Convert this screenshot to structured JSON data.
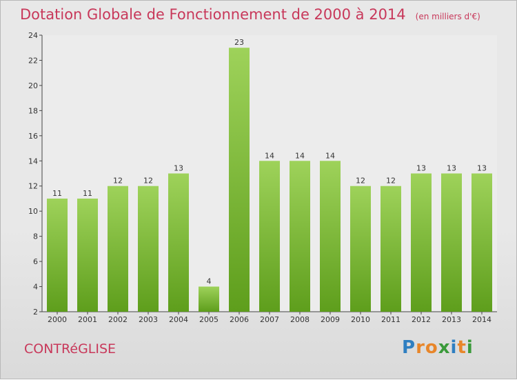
{
  "chart_data": {
    "type": "bar",
    "title": "Dotation Globale de Fonctionnement de 2000 à 2014",
    "subtitle": "(en milliers d'€)",
    "categories": [
      "2000",
      "2001",
      "2002",
      "2003",
      "2004",
      "2005",
      "2006",
      "2007",
      "2008",
      "2009",
      "2010",
      "2011",
      "2012",
      "2013",
      "2014"
    ],
    "values": [
      11,
      11,
      12,
      12,
      13,
      4,
      23,
      14,
      14,
      14,
      12,
      12,
      13,
      13,
      13
    ],
    "ylim": [
      2,
      24
    ],
    "yticks": [
      2,
      4,
      6,
      8,
      10,
      12,
      14,
      16,
      18,
      20,
      22,
      24
    ],
    "xlabel": "",
    "ylabel": "",
    "grid": false,
    "bar_color": "#7cc133"
  },
  "footer": {
    "commune": "CONTRéGLISE",
    "logo_letters": [
      "P",
      "r",
      "o",
      "x",
      "i",
      "t",
      "i"
    ],
    "logo_colors": [
      "#2f7fc1",
      "#e8862a",
      "#e8862a",
      "#3a9a3a",
      "#2f7fc1",
      "#e8862a",
      "#3a9a3a"
    ]
  }
}
